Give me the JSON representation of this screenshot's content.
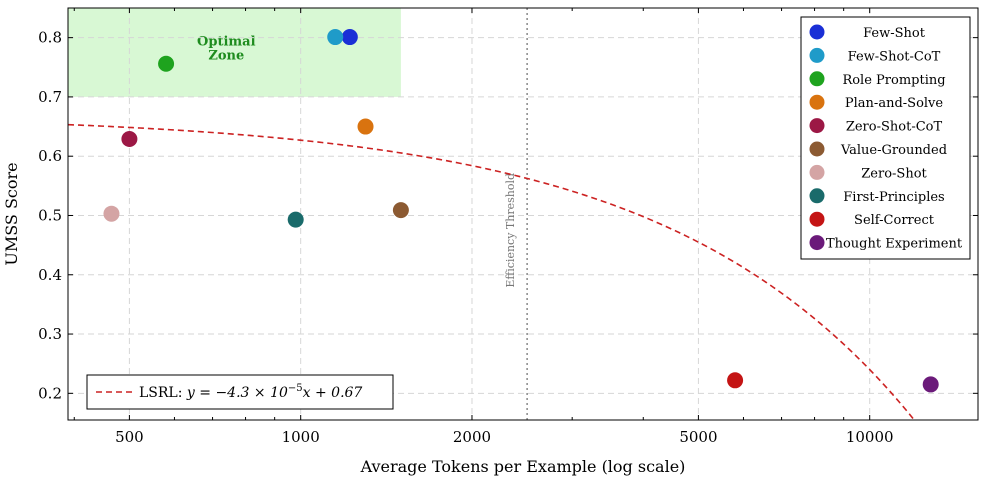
{
  "chart_data": {
    "type": "scatter",
    "xlabel": "Average Tokens per Example (log scale)",
    "ylabel": "UMSS Score",
    "x_scale": "log",
    "xlim": [
      390,
      15500
    ],
    "ylim": [
      0.155,
      0.85
    ],
    "x_ticks": [
      500,
      1000,
      2000,
      5000,
      10000
    ],
    "x_tick_labels": [
      "500",
      "1000",
      "2000",
      "5000",
      "10000"
    ],
    "y_ticks": [
      0.2,
      0.3,
      0.4,
      0.5,
      0.6,
      0.7,
      0.8
    ],
    "y_tick_labels": [
      "0.2",
      "0.3",
      "0.4",
      "0.5",
      "0.6",
      "0.7",
      "0.8"
    ],
    "grid": true,
    "legend_position": "top-right",
    "series": [
      {
        "name": "Few-Shot",
        "color": "#1a2fd6",
        "x": 1220,
        "y": 0.801
      },
      {
        "name": "Few-Shot-CoT",
        "color": "#1f9bc9",
        "x": 1150,
        "y": 0.801
      },
      {
        "name": "Role Prompting",
        "color": "#1ea31e",
        "x": 580,
        "y": 0.756
      },
      {
        "name": "Plan-and-Solve",
        "color": "#d9730f",
        "x": 1300,
        "y": 0.65
      },
      {
        "name": "Zero-Shot-CoT",
        "color": "#9c1845",
        "x": 500,
        "y": 0.629
      },
      {
        "name": "Value-Grounded",
        "color": "#8c5a32",
        "x": 1500,
        "y": 0.509
      },
      {
        "name": "Zero-Shot",
        "color": "#d4a4a4",
        "x": 465,
        "y": 0.503
      },
      {
        "name": "First-Principles",
        "color": "#1a6b6b",
        "x": 980,
        "y": 0.493
      },
      {
        "name": "Self-Correct",
        "color": "#c41414",
        "x": 5800,
        "y": 0.222
      },
      {
        "name": "Thought Experiment",
        "color": "#6b1a7a",
        "x": 12800,
        "y": 0.215
      }
    ],
    "regression": {
      "label_prefix": "LSRL: ",
      "label_equation": "y = −4.3 × 10",
      "label_exponent": "−5",
      "label_suffix": "x + 0.67",
      "slope": -4.3e-05,
      "intercept": 0.67,
      "color": "#cc2222"
    },
    "optimal_zone": {
      "label_line1": "Optimal",
      "label_line2": "Zone",
      "x_range": [
        390,
        1500
      ],
      "y_range": [
        0.7,
        0.85
      ],
      "color": "#d8f8d4"
    },
    "threshold": {
      "label": "Efficiency Threshold",
      "x": 2500
    }
  }
}
